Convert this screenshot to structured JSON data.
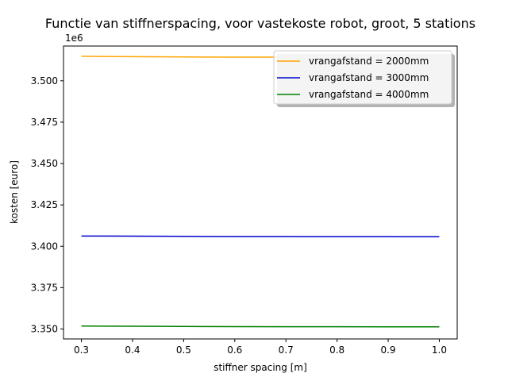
{
  "chart_data": {
    "type": "line",
    "title": "Functie van stiffnerspacing, voor vastekoste  robot, groot, 5 stations",
    "xlabel": "stiffner spacing [m]",
    "ylabel": "kosten [euro]",
    "y_offset_label": "1e6",
    "xlim": [
      0.265,
      1.035
    ],
    "ylim": [
      3344000,
      3521000
    ],
    "x_ticks": [
      0.3,
      0.4,
      0.5,
      0.6,
      0.7,
      0.8,
      0.9,
      1.0
    ],
    "x_tick_labels": [
      "0.3",
      "0.4",
      "0.5",
      "0.6",
      "0.7",
      "0.8",
      "0.9",
      "1.0"
    ],
    "y_ticks": [
      3350000,
      3375000,
      3400000,
      3425000,
      3450000,
      3475000,
      3500000
    ],
    "y_tick_labels": [
      "3.350",
      "3.375",
      "3.400",
      "3.425",
      "3.450",
      "3.475",
      "3.500"
    ],
    "legend_position": "top-right",
    "grid": false,
    "series": [
      {
        "name": "vrangafstand = 2000mm",
        "color": "#ffa500",
        "x": [
          0.3,
          0.4,
          0.5,
          0.6,
          0.7,
          0.8,
          0.9,
          1.0
        ],
        "y": [
          3514800,
          3514600,
          3514400,
          3514300,
          3514300,
          3514300,
          3514300,
          3514400
        ]
      },
      {
        "name": "vrangafstand = 3000mm",
        "color": "#0000cd",
        "x": [
          0.3,
          0.4,
          0.5,
          0.6,
          0.7,
          0.8,
          0.9,
          1.0
        ],
        "y": [
          3406200,
          3406100,
          3406000,
          3405900,
          3405850,
          3405800,
          3405800,
          3405750
        ]
      },
      {
        "name": "vrangafstand = 4000mm",
        "color": "#008000",
        "x": [
          0.3,
          0.4,
          0.5,
          0.6,
          0.7,
          0.8,
          0.9,
          1.0
        ],
        "y": [
          3351800,
          3351650,
          3351550,
          3351450,
          3351400,
          3351350,
          3351300,
          3351300
        ]
      }
    ]
  }
}
